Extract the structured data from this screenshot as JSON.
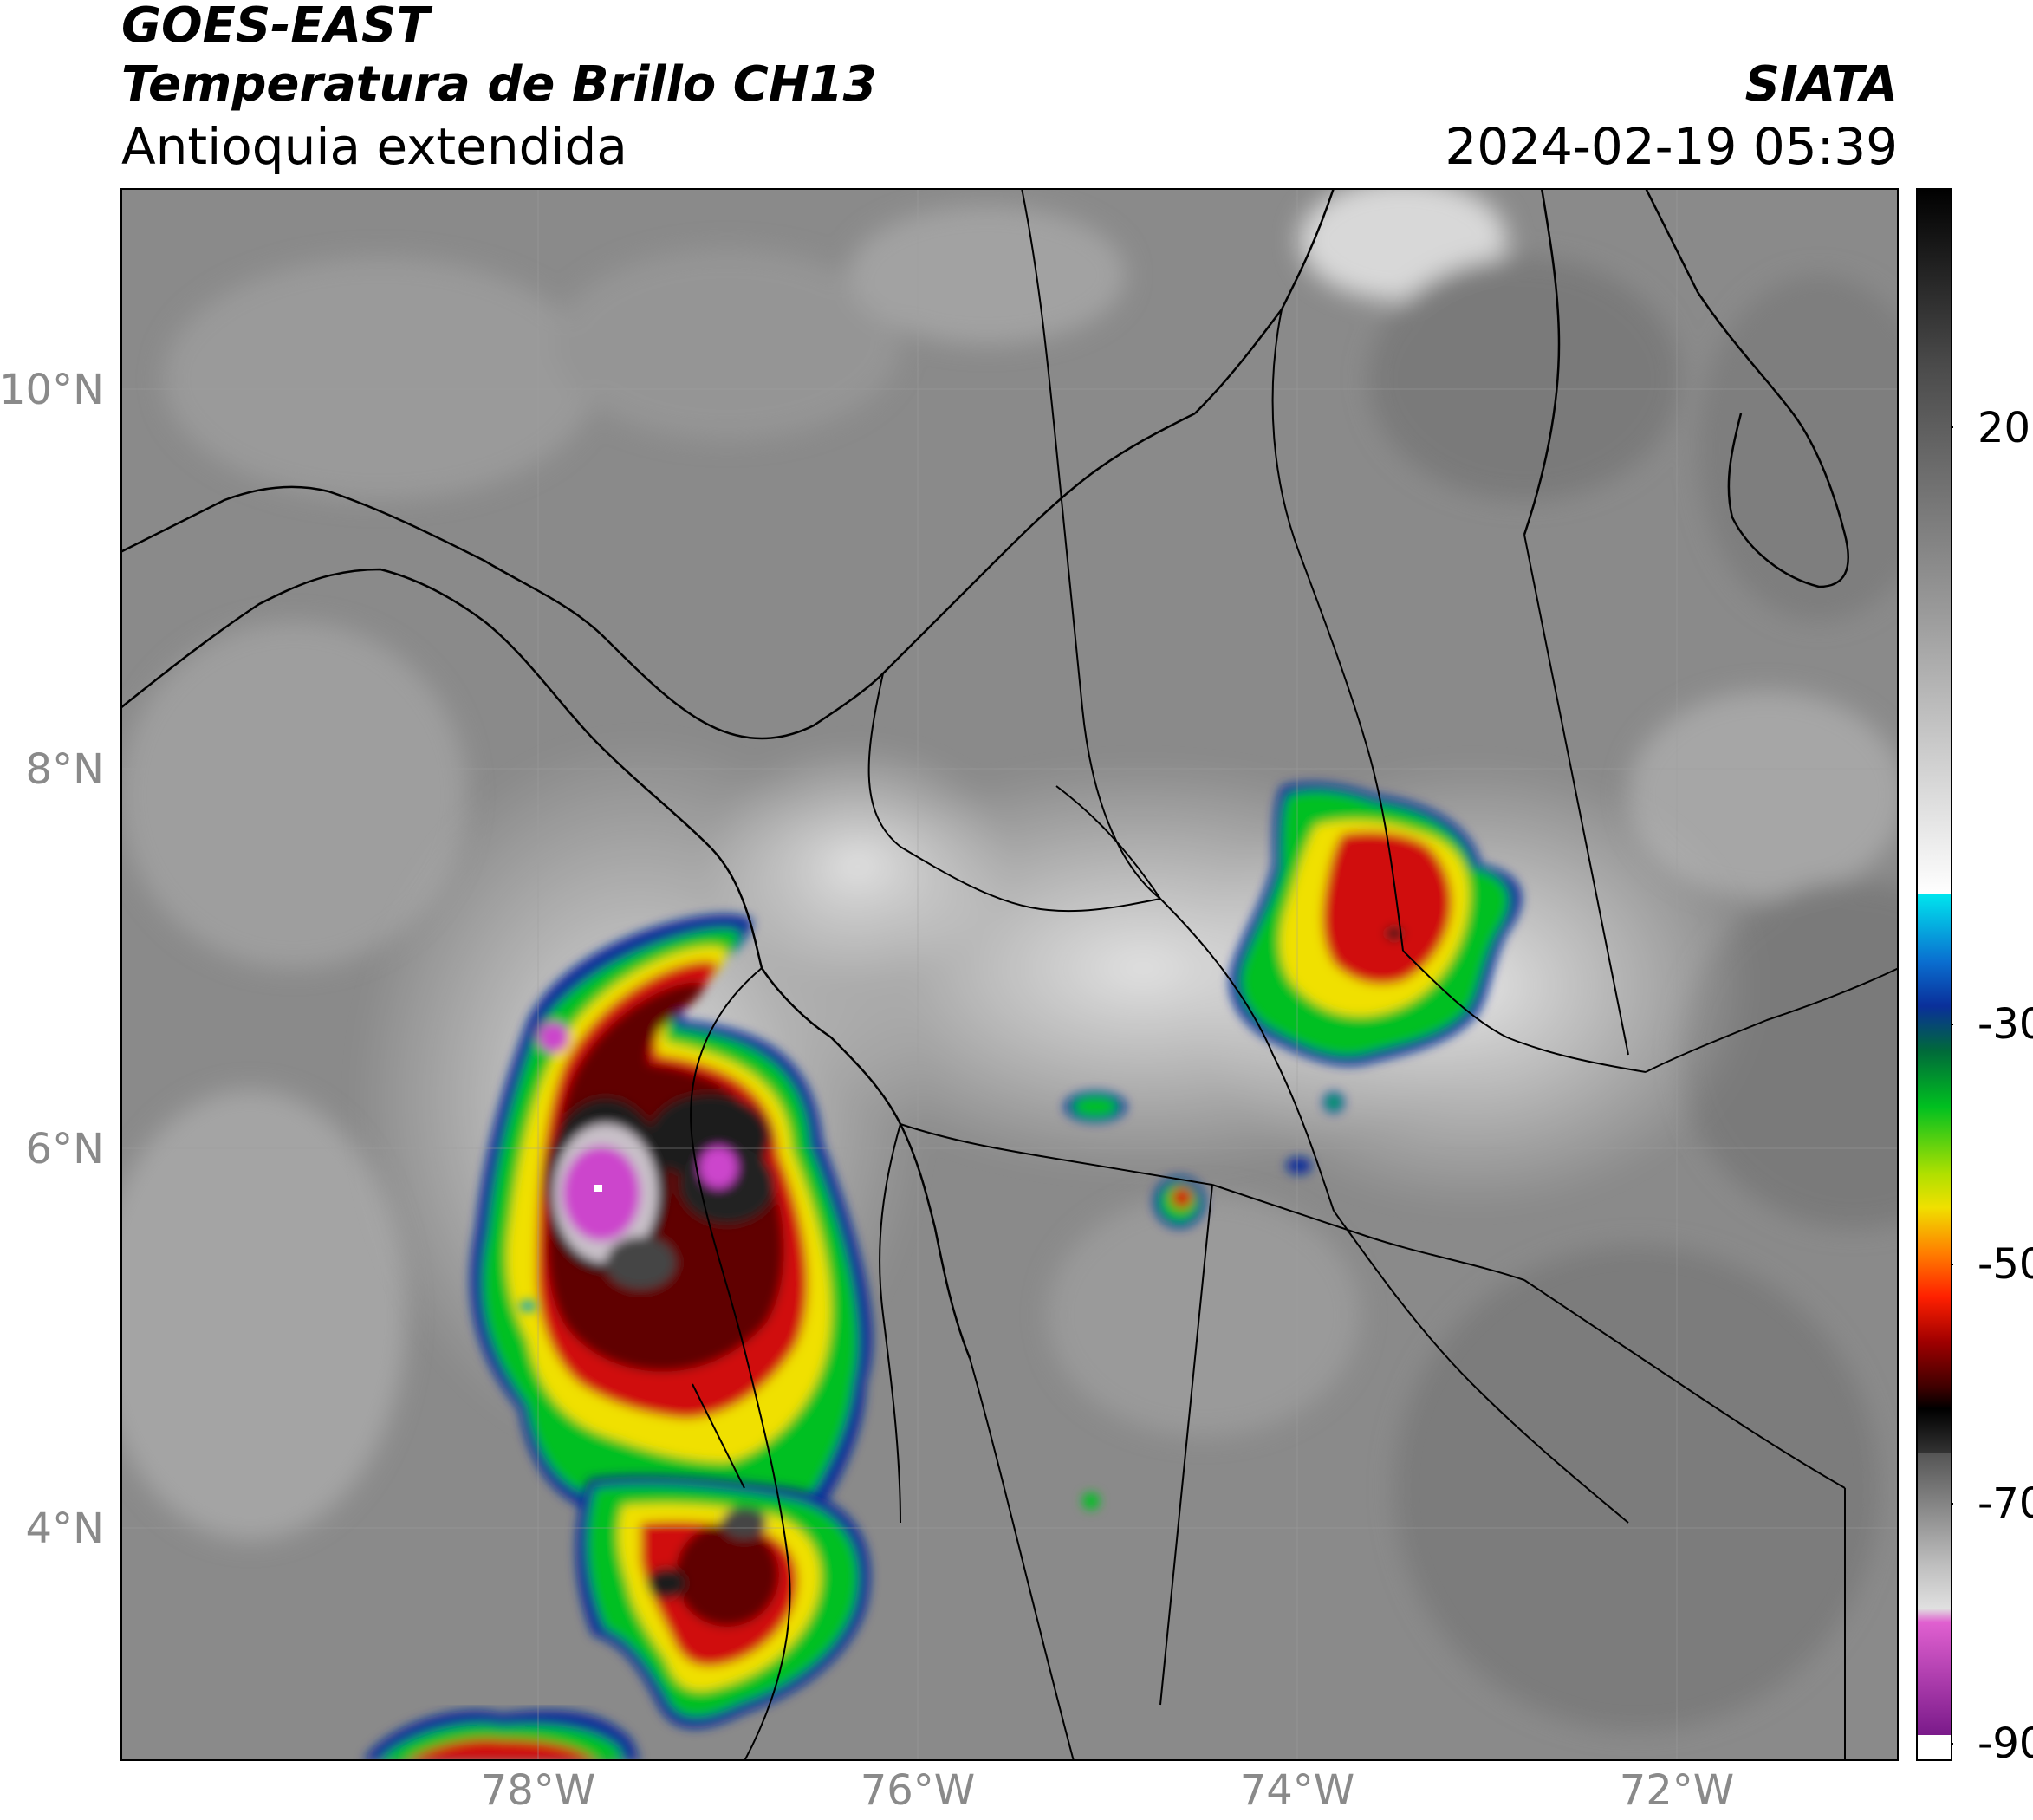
{
  "header": {
    "line1": "GOES-EAST",
    "line2": "Temperatura de Brillo CH13",
    "subtitle": "Antioquia extendida",
    "agency": "SIATA",
    "datetime": "2024-02-19 05:39"
  },
  "map": {
    "lat_ticks": [
      "10°N",
      "8°N",
      "6°N",
      "4°N"
    ],
    "lon_ticks": [
      "78°W",
      "76°W",
      "74°W",
      "72°W"
    ]
  },
  "colorbar": {
    "tick_labels": [
      "20",
      "-30",
      "-50",
      "-70",
      "-90"
    ],
    "colors": {
      "cyan": "#00e5ee",
      "blue": "#0a2f9a",
      "green": "#00c020",
      "yellow": "#f0e000",
      "red": "#d01010",
      "darkred": "#600000",
      "black": "#000000",
      "magenta": "#cc44cc",
      "purple": "#7a1a8a",
      "white": "#ffffff"
    }
  }
}
